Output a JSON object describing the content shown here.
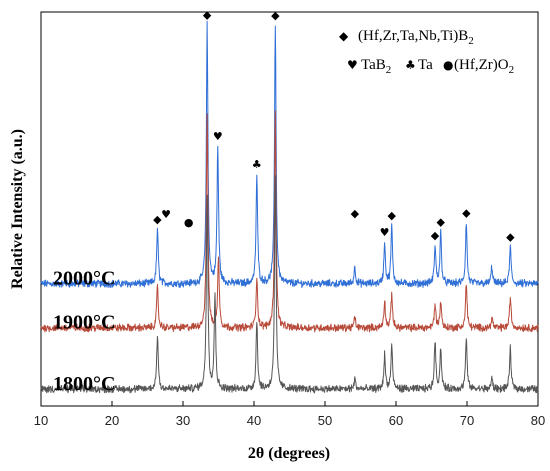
{
  "chart_data": {
    "type": "line",
    "xlabel": "2θ (degrees)",
    "ylabel": "Relative Intensity (a.u.)",
    "xlim": [
      10,
      80
    ],
    "xticks": [
      "10",
      "20",
      "30",
      "40",
      "50",
      "60",
      "70",
      "80"
    ],
    "baseline": 0.2,
    "series": [
      {
        "name": "2000°C",
        "color": "#2f6fd6",
        "offset": 2.2,
        "peaks": [
          [
            26.4,
            1.6
          ],
          [
            33.4,
            7.6
          ],
          [
            34.9,
            4.0
          ],
          [
            40.4,
            3.2
          ],
          [
            43.0,
            7.6
          ],
          [
            54.2,
            0.5
          ],
          [
            58.4,
            1.2
          ],
          [
            59.4,
            1.7
          ],
          [
            65.5,
            1.1
          ],
          [
            66.3,
            1.5
          ],
          [
            69.9,
            1.8
          ],
          [
            73.5,
            0.5
          ],
          [
            76.1,
            1.1
          ]
        ]
      },
      {
        "name": "1900°C",
        "color": "#b84a3a",
        "offset": 0.9,
        "peaks": [
          [
            26.4,
            1.2
          ],
          [
            33.4,
            6.3
          ],
          [
            35.0,
            2.1
          ],
          [
            40.4,
            1.5
          ],
          [
            43.0,
            6.3
          ],
          [
            54.2,
            0.3
          ],
          [
            58.4,
            0.8
          ],
          [
            59.4,
            1.0
          ],
          [
            65.5,
            0.7
          ],
          [
            66.3,
            0.8
          ],
          [
            69.9,
            1.3
          ],
          [
            73.5,
            0.3
          ],
          [
            76.1,
            0.9
          ]
        ]
      },
      {
        "name": "1800°C",
        "color": "#555555",
        "offset": -0.9,
        "peaks": [
          [
            26.4,
            1.6
          ],
          [
            33.4,
            5.7
          ],
          [
            34.5,
            2.7
          ],
          [
            40.4,
            2.0
          ],
          [
            43.0,
            6.2
          ],
          [
            54.2,
            0.3
          ],
          [
            58.4,
            1.0
          ],
          [
            59.4,
            1.3
          ],
          [
            65.5,
            1.4
          ],
          [
            66.3,
            1.2
          ],
          [
            69.9,
            1.5
          ],
          [
            73.5,
            0.3
          ],
          [
            76.1,
            1.2
          ]
        ]
      }
    ],
    "markers": [
      {
        "symbol": "◆",
        "x": 26.4,
        "series": 0
      },
      {
        "symbol": "♥",
        "x": 27.6,
        "series": 0
      },
      {
        "symbol": "●",
        "x": 30.8,
        "series": 0
      },
      {
        "symbol": "◆",
        "x": 33.4,
        "series": 0
      },
      {
        "symbol": "♥",
        "x": 34.9,
        "series": 0
      },
      {
        "symbol": "♣",
        "x": 40.4,
        "series": 0
      },
      {
        "symbol": "◆",
        "x": 43.0,
        "series": 0
      },
      {
        "symbol": "◆",
        "x": 54.2,
        "series": 0
      },
      {
        "symbol": "♥",
        "x": 58.4,
        "series": 0
      },
      {
        "symbol": "◆",
        "x": 59.4,
        "series": 0
      },
      {
        "symbol": "◆",
        "x": 65.5,
        "series": 0
      },
      {
        "symbol": "◆",
        "x": 66.3,
        "series": 0
      },
      {
        "symbol": "◆",
        "x": 69.9,
        "series": 0
      },
      {
        "symbol": "◆",
        "x": 76.1,
        "series": 0
      }
    ],
    "legend": {
      "placement": "top-right",
      "entries": [
        {
          "symbol": "◆",
          "label": "(Hf,Zr,Ta,Nb,Ti)B",
          "sub": "2",
          "after": ""
        },
        {
          "symbol": "♥",
          "label": "TaB",
          "sub": "2",
          "after": ""
        },
        {
          "symbol": "♣",
          "label": "Ta",
          "sub": "",
          "after": ""
        },
        {
          "symbol": "●",
          "label": "(Hf,Zr)O",
          "sub": "2",
          "after": ""
        }
      ]
    }
  }
}
